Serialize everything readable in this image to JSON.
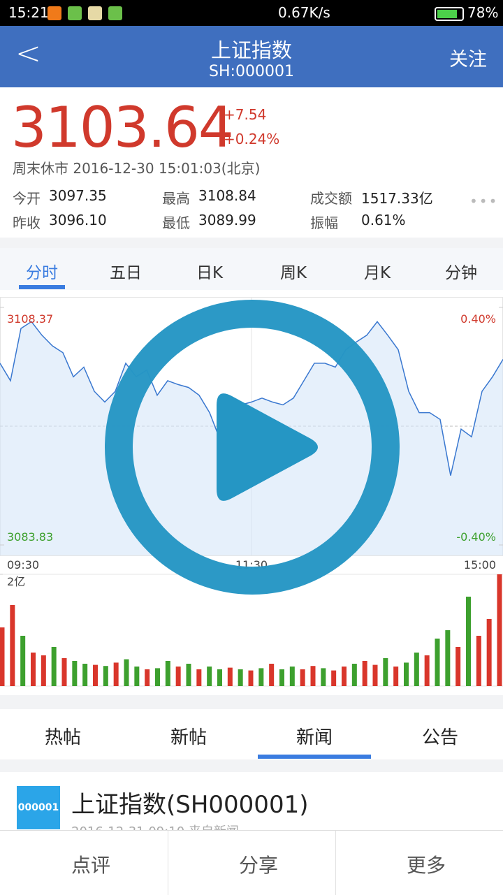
{
  "status_bar": {
    "time": "15:21",
    "speed": "0.67K/s",
    "battery": "78%"
  },
  "header": {
    "back": "<",
    "title": "上证指数",
    "subtitle": "SH:000001",
    "action": "关注"
  },
  "quote": {
    "price": "3103.64",
    "change": "+7.54",
    "change_pct": "+0.24%",
    "status": "周末休市 2016-12-30 15:01:03(北京)"
  },
  "stats": [
    {
      "label": "今开",
      "value": "3097.35"
    },
    {
      "label": "最高",
      "value": "3108.84"
    },
    {
      "label": "成交额",
      "value": "1517.33亿"
    },
    {
      "label": "昨收",
      "value": "3096.10"
    },
    {
      "label": "最低",
      "value": "3089.99"
    },
    {
      "label": "振幅",
      "value": "0.61%"
    }
  ],
  "chart_tabs": [
    "分时",
    "五日",
    "日K",
    "周K",
    "月K",
    "分钟"
  ],
  "chart_data": [
    {
      "type": "line",
      "color": "#3a78d0",
      "x": [
        0,
        5,
        10,
        15,
        20,
        25,
        30,
        35,
        40,
        45,
        50,
        55,
        60,
        65,
        70,
        75,
        80,
        85,
        90,
        95,
        100,
        105,
        110,
        115,
        120,
        125,
        130,
        135,
        140,
        145,
        150,
        155,
        160,
        165,
        170,
        175,
        180,
        185,
        190,
        195,
        200,
        205,
        210,
        215,
        220,
        225,
        230,
        235,
        240
      ],
      "values": [
        3102.6,
        3100.8,
        3106.2,
        3106.9,
        3105.5,
        3104.4,
        3103.7,
        3101.2,
        3102.2,
        3099.7,
        3098.6,
        3099.7,
        3102.6,
        3101.2,
        3101.9,
        3099.3,
        3100.8,
        3100.4,
        3100.1,
        3099.3,
        3097.5,
        3094.7,
        3095.4,
        3098.3,
        3098.6,
        3099.0,
        3098.6,
        3098.3,
        3099.0,
        3100.8,
        3102.6,
        3102.6,
        3102.2,
        3104.0,
        3104.8,
        3105.5,
        3106.9,
        3105.5,
        3104.0,
        3099.7,
        3097.5,
        3097.5,
        3096.8,
        3091.0,
        3095.8,
        3095.0,
        3099.7,
        3101.2,
        3103.0
      ],
      "ylim": [
        3083.83,
        3108.37
      ],
      "yticks": [
        3108.37,
        3083.83
      ],
      "y2lim": [
        -0.4,
        0.4
      ],
      "y2ticks": [
        {
          "value": 0.4,
          "label": "0.40%"
        },
        {
          "value": -0.4,
          "label": "-0.40%"
        }
      ],
      "xlim": [
        0,
        240
      ],
      "xticks": [
        {
          "value": 0,
          "label": "09:30"
        },
        {
          "value": 120,
          "label": "11:30"
        },
        {
          "value": 240,
          "label": "15:00"
        }
      ]
    },
    {
      "type": "bar",
      "x": [
        0,
        5,
        10,
        15,
        20,
        25,
        30,
        35,
        40,
        45,
        50,
        55,
        60,
        65,
        70,
        75,
        80,
        85,
        90,
        95,
        100,
        105,
        110,
        115,
        120,
        125,
        130,
        135,
        140,
        145,
        150,
        155,
        160,
        165,
        170,
        175,
        180,
        185,
        190,
        195,
        200,
        205,
        210,
        215,
        220,
        225,
        230,
        235,
        240
      ],
      "values": [
        1.05,
        1.45,
        0.9,
        0.6,
        0.55,
        0.7,
        0.5,
        0.45,
        0.4,
        0.38,
        0.36,
        0.42,
        0.48,
        0.35,
        0.3,
        0.32,
        0.45,
        0.35,
        0.4,
        0.3,
        0.35,
        0.3,
        0.33,
        0.3,
        0.28,
        0.32,
        0.4,
        0.3,
        0.35,
        0.3,
        0.36,
        0.32,
        0.28,
        0.35,
        0.4,
        0.45,
        0.38,
        0.5,
        0.35,
        0.42,
        0.6,
        0.55,
        0.85,
        1.0,
        0.7,
        1.6,
        0.9,
        1.2,
        2.0
      ],
      "colors": [
        "#d9362b",
        "#d9362b",
        "#3da02e",
        "#d9362b",
        "#d9362b",
        "#3da02e",
        "#d9362b",
        "#3da02e",
        "#3da02e",
        "#d9362b",
        "#3da02e",
        "#d9362b",
        "#3da02e",
        "#3da02e",
        "#d9362b",
        "#3da02e",
        "#3da02e",
        "#d9362b",
        "#3da02e",
        "#d9362b",
        "#3da02e",
        "#3da02e",
        "#d9362b",
        "#3da02e",
        "#d9362b",
        "#3da02e",
        "#d9362b",
        "#3da02e",
        "#3da02e",
        "#d9362b",
        "#d9362b",
        "#3da02e",
        "#d9362b",
        "#d9362b",
        "#3da02e",
        "#d9362b",
        "#d9362b",
        "#3da02e",
        "#d9362b",
        "#3da02e",
        "#3da02e",
        "#d9362b",
        "#3da02e",
        "#3da02e",
        "#d9362b",
        "#3da02e",
        "#d9362b",
        "#d9362b",
        "#d9362b"
      ],
      "ylim": [
        0,
        2
      ],
      "yticks": [
        {
          "value": 2,
          "label": "2亿"
        }
      ]
    }
  ],
  "news_tabs": [
    "热帖",
    "新帖",
    "新闻",
    "公告"
  ],
  "news": [
    {
      "icon": "000001",
      "title": "上证指数(SH000001)",
      "meta": "2016-12-31 09:10   来自新闻"
    }
  ],
  "bottom_bar": [
    "点评",
    "分享",
    "更多"
  ]
}
